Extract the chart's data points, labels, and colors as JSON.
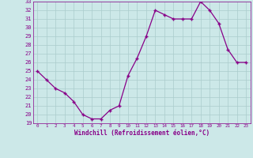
{
  "x": [
    0,
    1,
    2,
    3,
    4,
    5,
    6,
    7,
    8,
    9,
    10,
    11,
    12,
    13,
    14,
    15,
    16,
    17,
    18,
    19,
    20,
    21,
    22,
    23
  ],
  "y": [
    25.0,
    24.0,
    23.0,
    22.5,
    21.5,
    20.0,
    19.5,
    19.5,
    20.5,
    21.0,
    24.5,
    26.5,
    29.0,
    32.0,
    31.5,
    31.0,
    31.0,
    31.0,
    33.0,
    32.0,
    30.5,
    27.5,
    26.0,
    26.0
  ],
  "xlim": [
    -0.5,
    23.5
  ],
  "ylim": [
    19,
    33
  ],
  "yticks": [
    19,
    20,
    21,
    22,
    23,
    24,
    25,
    26,
    27,
    28,
    29,
    30,
    31,
    32,
    33
  ],
  "xtick_labels": [
    "0",
    "1",
    "2",
    "3",
    "4",
    "5",
    "6",
    "7",
    "8",
    "9",
    "10",
    "11",
    "12",
    "13",
    "14",
    "15",
    "16",
    "17",
    "18",
    "19",
    "20",
    "21",
    "22",
    "23"
  ],
  "xlabel": "Windchill (Refroidissement éolien,°C)",
  "line_color": "#880088",
  "marker_color": "#880088",
  "bg_color": "#cce8e8",
  "grid_color": "#aacccc",
  "plot_bg": "#cce8e8",
  "border_color": "#880088",
  "tick_label_color": "#880088",
  "xlabel_color": "#880088"
}
